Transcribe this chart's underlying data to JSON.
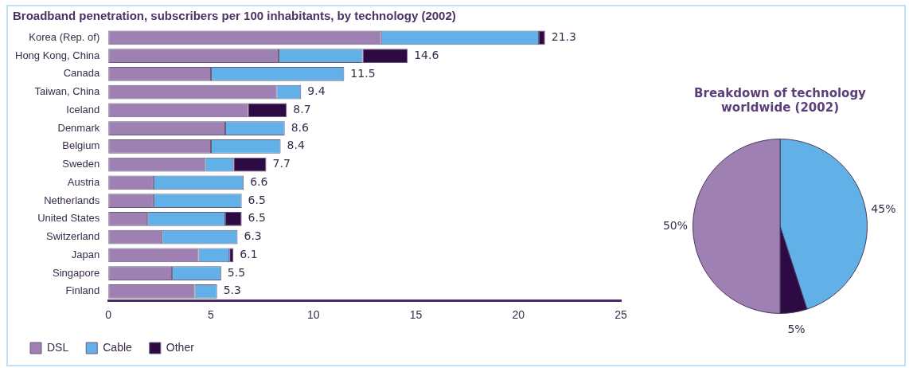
{
  "chart_data": [
    {
      "type": "bar",
      "orientation": "horizontal",
      "stacked": true,
      "title": "Broadband penetration, subscribers per 100 inhabitants, by technology (2002)",
      "categories": [
        "Korea (Rep. of)",
        "Hong Kong, China",
        "Canada",
        "Taiwan, China",
        "Iceland",
        "Denmark",
        "Belgium",
        "Sweden",
        "Austria",
        "Netherlands",
        "United States",
        "Switzerland",
        "Japan",
        "Singapore",
        "Finland"
      ],
      "series": [
        {
          "name": "DSL",
          "color": "#9e80b3",
          "values": [
            13.3,
            8.3,
            5.0,
            8.2,
            6.8,
            5.7,
            5.0,
            4.7,
            2.2,
            2.2,
            1.9,
            2.6,
            4.4,
            3.1,
            4.2
          ]
        },
        {
          "name": "Cable",
          "color": "#62b0e8",
          "values": [
            7.7,
            4.1,
            6.5,
            1.2,
            null,
            2.9,
            3.4,
            1.4,
            4.4,
            4.3,
            3.8,
            3.7,
            1.5,
            2.4,
            1.1
          ]
        },
        {
          "name": "Other",
          "color": "#2e0a45",
          "values": [
            0.3,
            2.2,
            null,
            null,
            1.9,
            null,
            null,
            1.6,
            null,
            null,
            0.8,
            null,
            0.2,
            null,
            null
          ]
        }
      ],
      "totals": [
        "21.3",
        "14.6",
        "11.5",
        "9.4",
        "8.7",
        "8.6",
        "8.4",
        "7.7",
        "6.6",
        "6.5",
        "6.5",
        "6.3",
        "6.1",
        "5.5",
        "5.3"
      ],
      "xlim": [
        0,
        25
      ],
      "xticks": [
        0,
        5,
        10,
        15,
        20,
        25
      ],
      "grid": false,
      "legend": "bottom"
    },
    {
      "type": "pie",
      "title": "Breakdown of technology worldwide (2002)",
      "categories": [
        null,
        null,
        null
      ],
      "values": [
        45,
        5,
        50
      ],
      "colors": [
        "#62b0e8",
        "#2e0a45",
        "#9e80b3"
      ],
      "value_labels": [
        "45%",
        "5%",
        "50%"
      ],
      "legend": false
    }
  ]
}
